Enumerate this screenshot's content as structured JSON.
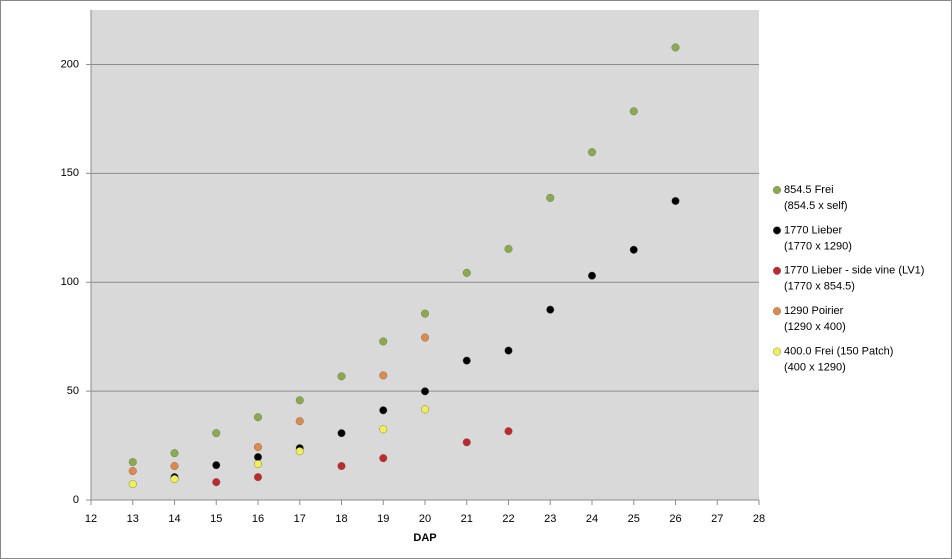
{
  "chart_data": {
    "type": "scatter",
    "x_label": "DAP",
    "xlim": [
      12,
      28
    ],
    "xticks": [
      12,
      13,
      14,
      15,
      16,
      17,
      18,
      19,
      20,
      21,
      22,
      23,
      24,
      25,
      26,
      27,
      28
    ],
    "ylim": [
      0,
      225
    ],
    "yticks": [
      0,
      50,
      100,
      150,
      200
    ],
    "grid": true,
    "legend": "right",
    "series": [
      {
        "name": "854.5 Frei",
        "cross": "(854.5 x self)",
        "color": "#8bab4b",
        "x": [
          13,
          14,
          15,
          16,
          17,
          18,
          19,
          20,
          21,
          22,
          23,
          24,
          25,
          26
        ],
        "values": [
          17.4,
          21.5,
          30.7,
          38,
          45.8,
          56.8,
          72.8,
          85.6,
          104.3,
          115.3,
          138.7,
          159.7,
          178.5,
          207.8
        ]
      },
      {
        "name": "1770 Lieber",
        "cross": "(1770 x 1290)",
        "color": "#000000",
        "x": [
          14,
          15,
          16,
          17,
          18,
          19,
          20,
          21,
          22,
          23,
          24,
          25,
          26
        ],
        "values": [
          10.5,
          16,
          19.7,
          23.8,
          30.7,
          41.2,
          49.9,
          64,
          68.6,
          87.4,
          103,
          114.9,
          137.3
        ]
      },
      {
        "name": "1770 Lieber - side vine (LV1)",
        "cross": "(1770 x 854.5)",
        "color": "#c0282d",
        "x": [
          15,
          16,
          18,
          19,
          21,
          22
        ],
        "values": [
          8.2,
          10.5,
          15.6,
          19.2,
          26.5,
          31.6
        ]
      },
      {
        "name": "1290 Poirier",
        "cross": "(1290 x 400)",
        "color": "#e08a4a",
        "x": [
          13,
          14,
          16,
          17,
          19,
          20
        ],
        "values": [
          13.3,
          15.6,
          24.3,
          36.2,
          57.2,
          74.6
        ]
      },
      {
        "name": "400.0 Frei (150 Patch)",
        "cross": "(400 x 1290)",
        "color": "#f0f050",
        "x": [
          13,
          14,
          16,
          17,
          19,
          20
        ],
        "values": [
          7.3,
          9.6,
          16.5,
          22.4,
          32.5,
          41.6
        ]
      }
    ]
  }
}
